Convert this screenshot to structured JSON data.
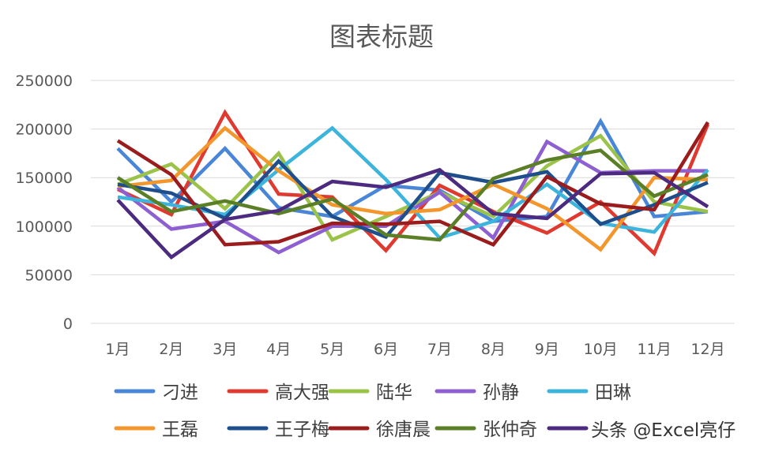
{
  "chart_data": {
    "type": "line",
    "title": "图表标题",
    "xlabel": "",
    "ylabel": "",
    "ylim": [
      0,
      250000
    ],
    "yticks": [
      "0",
      "50000",
      "100000",
      "150000",
      "200000",
      "250000"
    ],
    "grid": true,
    "legend_position": "bottom",
    "categories": [
      "1月",
      "2月",
      "3月",
      "4月",
      "5月",
      "6月",
      "7月",
      "8月",
      "9月",
      "10月",
      "11月",
      "12月"
    ],
    "series": [
      {
        "name": "刁进",
        "color": "#4a86d8",
        "values": [
          180000,
          125000,
          180000,
          119000,
          110000,
          142000,
          137000,
          105000,
          110000,
          208000,
          110000,
          115000
        ]
      },
      {
        "name": "高大强",
        "color": "#e03a30",
        "values": [
          138000,
          112000,
          217000,
          133000,
          130000,
          75000,
          142000,
          115000,
          93000,
          125000,
          72000,
          205000
        ]
      },
      {
        "name": "陆华",
        "color": "#9bc34a",
        "values": [
          143000,
          164000,
          118000,
          175000,
          86000,
          110000,
          135000,
          110000,
          162000,
          193000,
          125000,
          115000
        ]
      },
      {
        "name": "孙静",
        "color": "#8e5fd0",
        "values": [
          140000,
          97000,
          105000,
          73000,
          100000,
          100000,
          135000,
          88000,
          187000,
          155000,
          157000,
          157000
        ]
      },
      {
        "name": "田琳",
        "color": "#3cb4dc",
        "values": [
          130000,
          122000,
          112000,
          158000,
          201000,
          148000,
          88000,
          105000,
          143000,
          103000,
          94000,
          158000
        ]
      },
      {
        "name": "王磊",
        "color": "#f3962c",
        "values": [
          141000,
          147000,
          201000,
          157000,
          122000,
          113000,
          117000,
          143000,
          118000,
          76000,
          150000,
          148000
        ]
      },
      {
        "name": "王子梅",
        "color": "#1f4e8c",
        "values": [
          143000,
          134000,
          108000,
          167000,
          110000,
          89000,
          155000,
          145000,
          156000,
          102000,
          122000,
          145000
        ]
      },
      {
        "name": "徐唐晨",
        "color": "#9b1c1c",
        "values": [
          188000,
          153000,
          81000,
          84000,
          103000,
          102000,
          105000,
          81000,
          151000,
          123000,
          117000,
          207000
        ]
      },
      {
        "name": "张仲奇",
        "color": "#5a7f26",
        "values": [
          150000,
          115000,
          126000,
          113000,
          128000,
          91000,
          86000,
          149000,
          168000,
          178000,
          131000,
          153000
        ]
      },
      {
        "name": "",
        "color": "#4b2a7f",
        "values": [
          127000,
          68000,
          107000,
          116000,
          146000,
          140000,
          158000,
          113000,
          108000,
          154000,
          155000,
          120000
        ]
      }
    ]
  },
  "watermark": "头条 @Excel亮仔"
}
